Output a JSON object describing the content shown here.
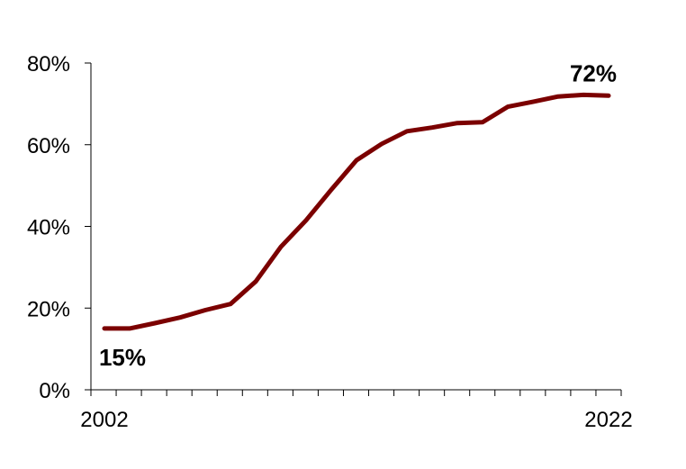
{
  "chart_data": {
    "type": "line",
    "x": [
      2002,
      2003,
      2004,
      2005,
      2006,
      2007,
      2008,
      2009,
      2010,
      2011,
      2012,
      2013,
      2014,
      2015,
      2016,
      2017,
      2018,
      2019,
      2020,
      2021,
      2022
    ],
    "series": [
      {
        "values": [
          15,
          15,
          16.3,
          17.7,
          19.5,
          21,
          26.5,
          35,
          41.5,
          49,
          56.2,
          60.2,
          63.3,
          64.2,
          65.3,
          65.5,
          69.3,
          70.5,
          71.8,
          72.2,
          72
        ],
        "color": "#7b0000"
      }
    ],
    "x_tick_labels": [
      "2002",
      "2022"
    ],
    "y_ticks": [
      0,
      20,
      40,
      60,
      80
    ],
    "y_tick_labels": [
      "0%",
      "20%",
      "40%",
      "60%",
      "80%"
    ],
    "ylim": [
      0,
      80
    ],
    "xlim": [
      2002,
      2022
    ],
    "data_labels": [
      {
        "x": 2002,
        "text": "15%"
      },
      {
        "x": 2022,
        "text": "72%"
      }
    ],
    "grid": false,
    "title": "",
    "xlabel": "",
    "ylabel": ""
  }
}
